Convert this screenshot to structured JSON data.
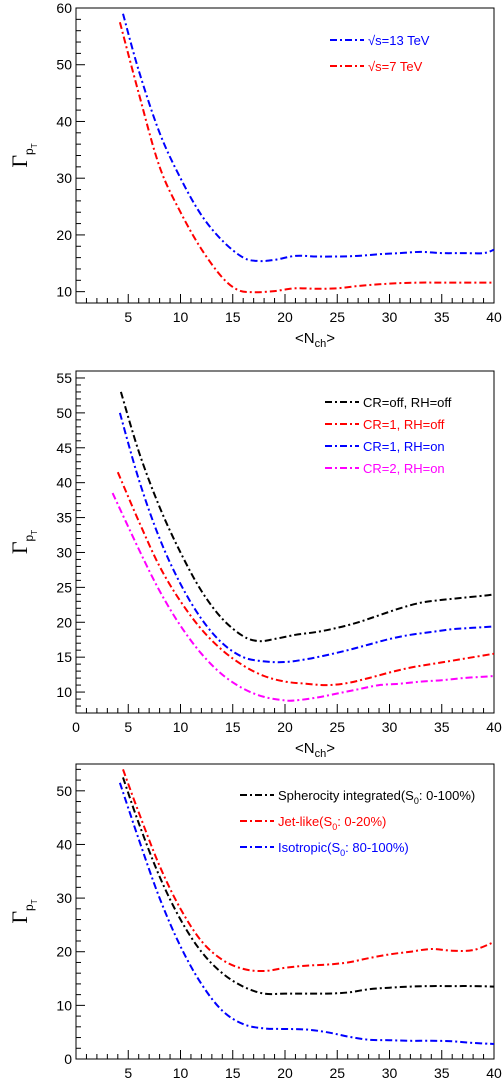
{
  "figure": {
    "panels": [
      {
        "ylabel": "Γ",
        "ylabel_sub": "p",
        "ylabel_subsub": "T",
        "xlabel": "<N",
        "xlabel_sub": "ch",
        "xlabel_end": ">"
      },
      {
        "ylabel": "Γ",
        "ylabel_sub": "p",
        "ylabel_subsub": "T",
        "xlabel": "<N",
        "xlabel_sub": "ch",
        "xlabel_end": ">"
      },
      {
        "ylabel": "Γ",
        "ylabel_sub": "p",
        "ylabel_subsub": "T",
        "xlabel": "<N",
        "xlabel_sub": "ch",
        "xlabel_end": ">"
      }
    ]
  },
  "chart_data": [
    {
      "type": "line",
      "xlim": [
        0,
        40
      ],
      "ylim": [
        8,
        60
      ],
      "xticks": [
        5,
        10,
        15,
        20,
        25,
        30,
        35,
        40
      ],
      "yticks": [
        10,
        20,
        30,
        40,
        50,
        60
      ],
      "grid": false,
      "legend_position": "top-right",
      "series": [
        {
          "name": "√s=13 TeV",
          "legend_parts": [
            "√s",
            "=13 TeV"
          ],
          "color": "#0000ff",
          "x": [
            4.5,
            6,
            8,
            10,
            12,
            14,
            16,
            17.5,
            19,
            21,
            23,
            25,
            27,
            29,
            31,
            33,
            35,
            37,
            39,
            40
          ],
          "y": [
            59,
            49,
            38,
            30,
            23.5,
            19,
            16,
            15.4,
            15.6,
            16.3,
            16.2,
            16.2,
            16.3,
            16.6,
            16.8,
            17.0,
            16.8,
            16.8,
            16.8,
            17.4
          ]
        },
        {
          "name": "√s=7 TeV",
          "legend_parts": [
            "√s",
            "=7 TeV"
          ],
          "color": "#ff0000",
          "x": [
            4.2,
            6,
            8,
            10,
            12,
            14,
            15.5,
            17,
            19,
            21,
            23,
            25,
            27,
            29,
            31,
            33,
            35,
            37,
            39,
            40
          ],
          "y": [
            57.5,
            45,
            32,
            24,
            17.5,
            12.5,
            10.3,
            9.9,
            10.1,
            10.6,
            10.5,
            10.6,
            11.0,
            11.3,
            11.5,
            11.6,
            11.6,
            11.6,
            11.6,
            11.6
          ]
        }
      ]
    },
    {
      "type": "line",
      "xlim": [
        0,
        40
      ],
      "ylim": [
        7,
        56
      ],
      "xticks": [
        0,
        5,
        10,
        15,
        20,
        25,
        30,
        35,
        40
      ],
      "yticks": [
        10,
        15,
        20,
        25,
        30,
        35,
        40,
        45,
        50,
        55
      ],
      "grid": false,
      "legend_position": "top-right",
      "series": [
        {
          "name": "CR=off, RH=off",
          "color": "#000000",
          "x": [
            4.3,
            6,
            8,
            10,
            12,
            14,
            16,
            17.5,
            19,
            21,
            23,
            25,
            27,
            29,
            31,
            33,
            35,
            37,
            39,
            40
          ],
          "y": [
            53,
            44.5,
            36.5,
            30,
            24.5,
            20.5,
            18,
            17.3,
            17.6,
            18.2,
            18.6,
            19.2,
            20.0,
            21.0,
            22.0,
            22.8,
            23.2,
            23.5,
            23.8,
            24.0
          ]
        },
        {
          "name": "CR=1, RH=off",
          "color": "#ff0000",
          "x": [
            4.0,
            6,
            8,
            10,
            12,
            14,
            16,
            18,
            20,
            22,
            24,
            26,
            28,
            30,
            32,
            34,
            36,
            38,
            40
          ],
          "y": [
            41.5,
            34.5,
            28,
            23,
            19,
            16,
            13.8,
            12.3,
            11.5,
            11.2,
            11.0,
            11.3,
            12.0,
            12.8,
            13.5,
            14.0,
            14.5,
            15.0,
            15.5
          ]
        },
        {
          "name": "CR=1, RH=on",
          "color": "#0000ff",
          "x": [
            4.2,
            6,
            8,
            10,
            12,
            14,
            16,
            18,
            20,
            22,
            24,
            26,
            28,
            30,
            32,
            34,
            36,
            38,
            40
          ],
          "y": [
            50,
            40.5,
            32,
            25.5,
            20.5,
            17,
            15,
            14.4,
            14.3,
            14.7,
            15.3,
            16.0,
            16.8,
            17.6,
            18.2,
            18.6,
            19.0,
            19.2,
            19.4
          ]
        },
        {
          "name": "CR=2, RH=on",
          "color": "#ff00ff",
          "x": [
            3.5,
            6,
            8,
            10,
            12,
            14,
            16,
            18,
            20,
            21,
            23,
            25,
            27,
            29,
            31,
            33,
            35,
            37,
            39,
            40
          ],
          "y": [
            38.5,
            30.5,
            24.5,
            19.5,
            15.5,
            12.5,
            10.5,
            9.3,
            8.8,
            8.8,
            9.2,
            9.8,
            10.4,
            11.0,
            11.2,
            11.5,
            11.7,
            12.0,
            12.2,
            12.3
          ]
        }
      ]
    },
    {
      "type": "line",
      "xlim": [
        0,
        40
      ],
      "ylim": [
        0,
        55
      ],
      "xticks": [
        5,
        10,
        15,
        20,
        25,
        30,
        35,
        40
      ],
      "yticks": [
        0,
        10,
        20,
        30,
        40,
        50
      ],
      "grid": false,
      "legend_position": "top-right",
      "series": [
        {
          "name": "Spherocity integrated(S0: 0-100%)",
          "legend_parts": [
            "Spherocity integrated(S",
            "0",
            ": 0-100%)"
          ],
          "color": "#000000",
          "x": [
            4.5,
            6,
            8,
            10,
            12,
            14,
            16,
            18,
            20,
            22,
            24,
            26,
            28,
            30,
            32,
            34,
            36,
            38,
            40
          ],
          "y": [
            52.5,
            44,
            34,
            26,
            20,
            16,
            13.5,
            12.2,
            12.2,
            12.2,
            12.2,
            12.4,
            13.0,
            13.3,
            13.5,
            13.6,
            13.6,
            13.6,
            13.5
          ]
        },
        {
          "name": "Jet-like(S0: 0-20%)",
          "legend_parts": [
            "Jet-like(S",
            "0",
            ": 0-20%)"
          ],
          "color": "#ff0000",
          "x": [
            4.5,
            6,
            8,
            10,
            12,
            14,
            16,
            18,
            20,
            22,
            24,
            26,
            28,
            30,
            32,
            34,
            36,
            38,
            40
          ],
          "y": [
            54,
            46,
            36,
            28,
            22,
            18.5,
            16.8,
            16.4,
            17.0,
            17.4,
            17.6,
            18.0,
            18.8,
            19.5,
            20.0,
            20.5,
            20.2,
            20.3,
            21.8
          ]
        },
        {
          "name": "Isotropic(S0: 80-100%)",
          "legend_parts": [
            "Isotropic(S",
            "0",
            ": 80-100%)"
          ],
          "color": "#0000ff",
          "x": [
            4.2,
            6,
            8,
            10,
            12,
            14,
            16,
            18,
            20,
            22,
            24,
            26,
            28,
            30,
            32,
            34,
            36,
            38,
            40
          ],
          "y": [
            51.5,
            41,
            30,
            21,
            14,
            9,
            6.5,
            5.7,
            5.6,
            5.5,
            5.0,
            4.2,
            3.6,
            3.5,
            3.4,
            3.4,
            3.3,
            3.0,
            2.8
          ]
        }
      ]
    }
  ]
}
